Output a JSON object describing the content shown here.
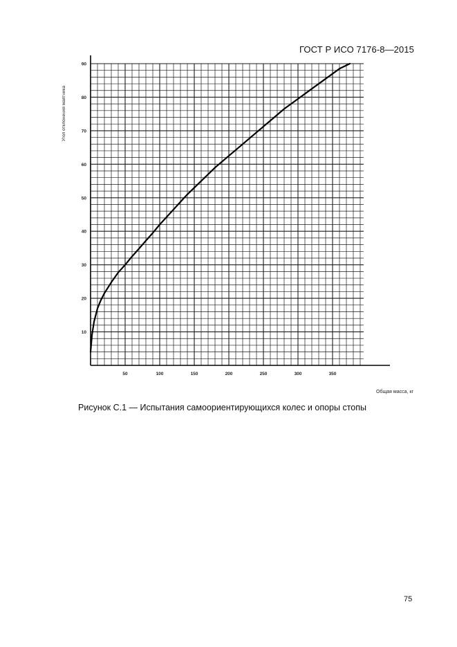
{
  "header": {
    "doc_id": "ГОСТ Р ИСО 7176-8—2015"
  },
  "figure": {
    "caption": "Рисунок С.1 — Испытания самоориентирующихся колес и опоры стопы"
  },
  "page": {
    "number": "75"
  },
  "chart_data": {
    "type": "line",
    "xlabel": "Общая масса, кг",
    "ylabel": "Угол отклонения маятника",
    "xlim": [
      0,
      395
    ],
    "ylim": [
      0,
      90
    ],
    "x_ticks": [
      50,
      100,
      150,
      200,
      250,
      300,
      350
    ],
    "y_ticks": [
      10,
      20,
      30,
      40,
      50,
      60,
      70,
      80,
      90
    ],
    "grid": true,
    "series": [
      {
        "x": [
          0,
          2,
          5,
          10,
          15,
          20,
          30,
          40,
          50,
          60,
          70,
          80,
          90,
          100,
          120,
          140,
          160,
          180,
          200,
          220,
          240,
          260,
          280,
          300,
          320,
          340,
          360,
          375
        ],
        "y": [
          4,
          9,
          13,
          17,
          19.5,
          21.5,
          24.8,
          27.7,
          30,
          32.5,
          34.8,
          37.2,
          39.5,
          42,
          46.5,
          51,
          55,
          59,
          62.5,
          66,
          69.5,
          73,
          76.5,
          79.5,
          82.5,
          85.5,
          88.5,
          90
        ]
      }
    ]
  }
}
